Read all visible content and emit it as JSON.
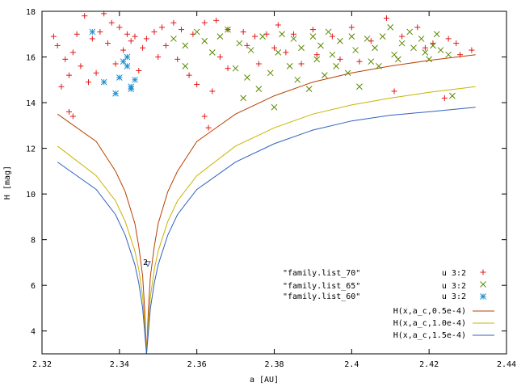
{
  "chart_data": {
    "type": "scatter",
    "title": "",
    "xlabel": "a [AU]",
    "ylabel": "H [mag]",
    "xlim": [
      2.32,
      2.44
    ],
    "ylim": [
      3,
      18
    ],
    "xticks": [
      2.32,
      2.34,
      2.36,
      2.38,
      2.4,
      2.42,
      2.44
    ],
    "xtick_labels": [
      "2.32",
      "2.34",
      "2.36",
      "2.38",
      "2.4",
      "2.42",
      "2.44"
    ],
    "yticks": [
      4,
      6,
      8,
      10,
      12,
      14,
      16,
      18
    ],
    "ytick_labels": [
      "4",
      "6",
      "8",
      "10",
      "12",
      "14",
      "16",
      "18"
    ],
    "grid": false,
    "legend_placement": "bottom-right",
    "legend_labels": {
      "scatter_titles": [
        "\"family.list_70\"",
        "\"family.list_65\"",
        "\"family.list_60\""
      ],
      "scatter_keys": [
        "u 3:2",
        "u 3:2",
        "u 3:2"
      ],
      "curve_keys": [
        "H(x,a_c,0.5e-4)",
        "H(x,a_c,1.0e-4)",
        "H(x,a_c,1.5e-4)"
      ]
    },
    "marker_annotation": {
      "text": "2",
      "x": 2.3465,
      "y": 6.9,
      "color": "#3060c0"
    },
    "scatter_series": [
      {
        "color": "#e01818",
        "marker": "plus",
        "points": [
          [
            2.323,
            16.9
          ],
          [
            2.324,
            16.5
          ],
          [
            2.325,
            14.7
          ],
          [
            2.327,
            15.2
          ],
          [
            2.328,
            16.2
          ],
          [
            2.329,
            17.0
          ],
          [
            2.331,
            17.8
          ],
          [
            2.333,
            16.8
          ],
          [
            2.335,
            17.1
          ],
          [
            2.336,
            17.9
          ],
          [
            2.338,
            17.5
          ],
          [
            2.34,
            17.3
          ],
          [
            2.342,
            17.0
          ],
          [
            2.344,
            16.9
          ],
          [
            2.346,
            16.4
          ],
          [
            2.349,
            17.1
          ],
          [
            2.351,
            17.3
          ],
          [
            2.354,
            17.5
          ],
          [
            2.356,
            17.2
          ],
          [
            2.359,
            17.0
          ],
          [
            2.362,
            17.5
          ],
          [
            2.365,
            17.6
          ],
          [
            2.368,
            17.2
          ],
          [
            2.372,
            17.1
          ],
          [
            2.375,
            16.9
          ],
          [
            2.378,
            17.0
          ],
          [
            2.381,
            17.4
          ],
          [
            2.385,
            17.0
          ],
          [
            2.39,
            17.2
          ],
          [
            2.395,
            16.9
          ],
          [
            2.4,
            17.3
          ],
          [
            2.405,
            16.7
          ],
          [
            2.409,
            17.7
          ],
          [
            2.413,
            16.9
          ],
          [
            2.417,
            17.3
          ],
          [
            2.421,
            16.6
          ],
          [
            2.425,
            16.8
          ],
          [
            2.428,
            16.1
          ],
          [
            2.431,
            16.3
          ],
          [
            2.326,
            15.9
          ],
          [
            2.327,
            13.6
          ],
          [
            2.328,
            13.4
          ],
          [
            2.33,
            15.6
          ],
          [
            2.332,
            14.9
          ],
          [
            2.334,
            15.3
          ],
          [
            2.337,
            16.6
          ],
          [
            2.339,
            15.7
          ],
          [
            2.341,
            16.3
          ],
          [
            2.343,
            16.7
          ],
          [
            2.345,
            15.4
          ],
          [
            2.347,
            16.8
          ],
          [
            2.35,
            16.0
          ],
          [
            2.352,
            16.5
          ],
          [
            2.355,
            15.9
          ],
          [
            2.358,
            15.2
          ],
          [
            2.36,
            14.8
          ],
          [
            2.362,
            13.4
          ],
          [
            2.363,
            12.9
          ],
          [
            2.364,
            14.5
          ],
          [
            2.366,
            16.0
          ],
          [
            2.368,
            15.5
          ],
          [
            2.373,
            16.5
          ],
          [
            2.376,
            15.7
          ],
          [
            2.38,
            16.4
          ],
          [
            2.383,
            16.2
          ],
          [
            2.387,
            15.7
          ],
          [
            2.391,
            16.1
          ],
          [
            2.397,
            15.9
          ],
          [
            2.402,
            15.8
          ],
          [
            2.411,
            14.5
          ],
          [
            2.419,
            16.4
          ],
          [
            2.424,
            14.2
          ],
          [
            2.427,
            16.6
          ]
        ]
      },
      {
        "color": "#5a8a00",
        "marker": "cross",
        "points": [
          [
            2.354,
            16.8
          ],
          [
            2.357,
            16.5
          ],
          [
            2.36,
            17.1
          ],
          [
            2.362,
            16.7
          ],
          [
            2.364,
            16.2
          ],
          [
            2.366,
            16.9
          ],
          [
            2.368,
            17.2
          ],
          [
            2.37,
            15.5
          ],
          [
            2.371,
            16.6
          ],
          [
            2.373,
            15.1
          ],
          [
            2.374,
            16.3
          ],
          [
            2.376,
            14.6
          ],
          [
            2.377,
            16.9
          ],
          [
            2.379,
            15.3
          ],
          [
            2.38,
            13.8
          ],
          [
            2.381,
            16.2
          ],
          [
            2.382,
            17.0
          ],
          [
            2.384,
            15.6
          ],
          [
            2.385,
            16.8
          ],
          [
            2.386,
            15.0
          ],
          [
            2.387,
            16.4
          ],
          [
            2.389,
            14.6
          ],
          [
            2.39,
            16.9
          ],
          [
            2.391,
            15.9
          ],
          [
            2.392,
            16.5
          ],
          [
            2.393,
            15.2
          ],
          [
            2.394,
            17.1
          ],
          [
            2.395,
            16.1
          ],
          [
            2.396,
            15.6
          ],
          [
            2.397,
            16.7
          ],
          [
            2.399,
            15.3
          ],
          [
            2.4,
            16.9
          ],
          [
            2.401,
            16.3
          ],
          [
            2.402,
            14.7
          ],
          [
            2.404,
            16.8
          ],
          [
            2.405,
            15.8
          ],
          [
            2.406,
            16.4
          ],
          [
            2.407,
            15.6
          ],
          [
            2.408,
            16.9
          ],
          [
            2.41,
            17.3
          ],
          [
            2.411,
            16.1
          ],
          [
            2.412,
            15.9
          ],
          [
            2.413,
            16.6
          ],
          [
            2.415,
            17.1
          ],
          [
            2.416,
            16.4
          ],
          [
            2.418,
            16.8
          ],
          [
            2.419,
            16.2
          ],
          [
            2.42,
            15.9
          ],
          [
            2.421,
            16.5
          ],
          [
            2.422,
            17.0
          ],
          [
            2.423,
            16.3
          ],
          [
            2.425,
            16.1
          ],
          [
            2.426,
            14.3
          ],
          [
            2.357,
            15.6
          ],
          [
            2.372,
            14.2
          ]
        ]
      },
      {
        "color": "#1e8fd0",
        "marker": "star",
        "points": [
          [
            2.333,
            17.1
          ],
          [
            2.336,
            14.9
          ],
          [
            2.339,
            14.4
          ],
          [
            2.34,
            15.1
          ],
          [
            2.341,
            15.8
          ],
          [
            2.342,
            15.6
          ],
          [
            2.342,
            16.0
          ],
          [
            2.343,
            14.7
          ],
          [
            2.344,
            15.0
          ],
          [
            2.343,
            14.6
          ]
        ]
      }
    ],
    "curve_series": [
      {
        "color": "#b84000",
        "family": "family.list_70",
        "mirror_x": 2.347,
        "points": [
          [
            2.347,
            3.0
          ],
          [
            2.3475,
            5.0
          ],
          [
            2.348,
            6.4
          ],
          [
            2.349,
            7.7
          ],
          [
            2.35,
            8.7
          ],
          [
            2.3525,
            10.1
          ],
          [
            2.355,
            11.0
          ],
          [
            2.36,
            12.3
          ],
          [
            2.37,
            13.5
          ],
          [
            2.38,
            14.3
          ],
          [
            2.39,
            14.9
          ],
          [
            2.4,
            15.3
          ],
          [
            2.41,
            15.6
          ],
          [
            2.42,
            15.85
          ],
          [
            2.432,
            16.1
          ]
        ]
      },
      {
        "color": "#c8b400",
        "family": "family.list_65",
        "mirror_x": 2.347,
        "points": [
          [
            2.347,
            3.0
          ],
          [
            2.3475,
            4.4
          ],
          [
            2.348,
            5.5
          ],
          [
            2.349,
            6.7
          ],
          [
            2.35,
            7.5
          ],
          [
            2.3525,
            8.8
          ],
          [
            2.355,
            9.7
          ],
          [
            2.36,
            10.8
          ],
          [
            2.37,
            12.1
          ],
          [
            2.38,
            12.9
          ],
          [
            2.39,
            13.5
          ],
          [
            2.4,
            13.9
          ],
          [
            2.41,
            14.2
          ],
          [
            2.42,
            14.45
          ],
          [
            2.432,
            14.7
          ]
        ]
      },
      {
        "color": "#3060c0",
        "family": "family.list_60",
        "mirror_x": 2.347,
        "points": [
          [
            2.347,
            3.0
          ],
          [
            2.3475,
            4.0
          ],
          [
            2.348,
            5.0
          ],
          [
            2.349,
            6.1
          ],
          [
            2.35,
            6.9
          ],
          [
            2.3525,
            8.2
          ],
          [
            2.355,
            9.1
          ],
          [
            2.36,
            10.2
          ],
          [
            2.37,
            11.4
          ],
          [
            2.38,
            12.2
          ],
          [
            2.39,
            12.8
          ],
          [
            2.4,
            13.2
          ],
          [
            2.41,
            13.45
          ],
          [
            2.42,
            13.6
          ],
          [
            2.432,
            13.8
          ]
        ]
      }
    ]
  }
}
